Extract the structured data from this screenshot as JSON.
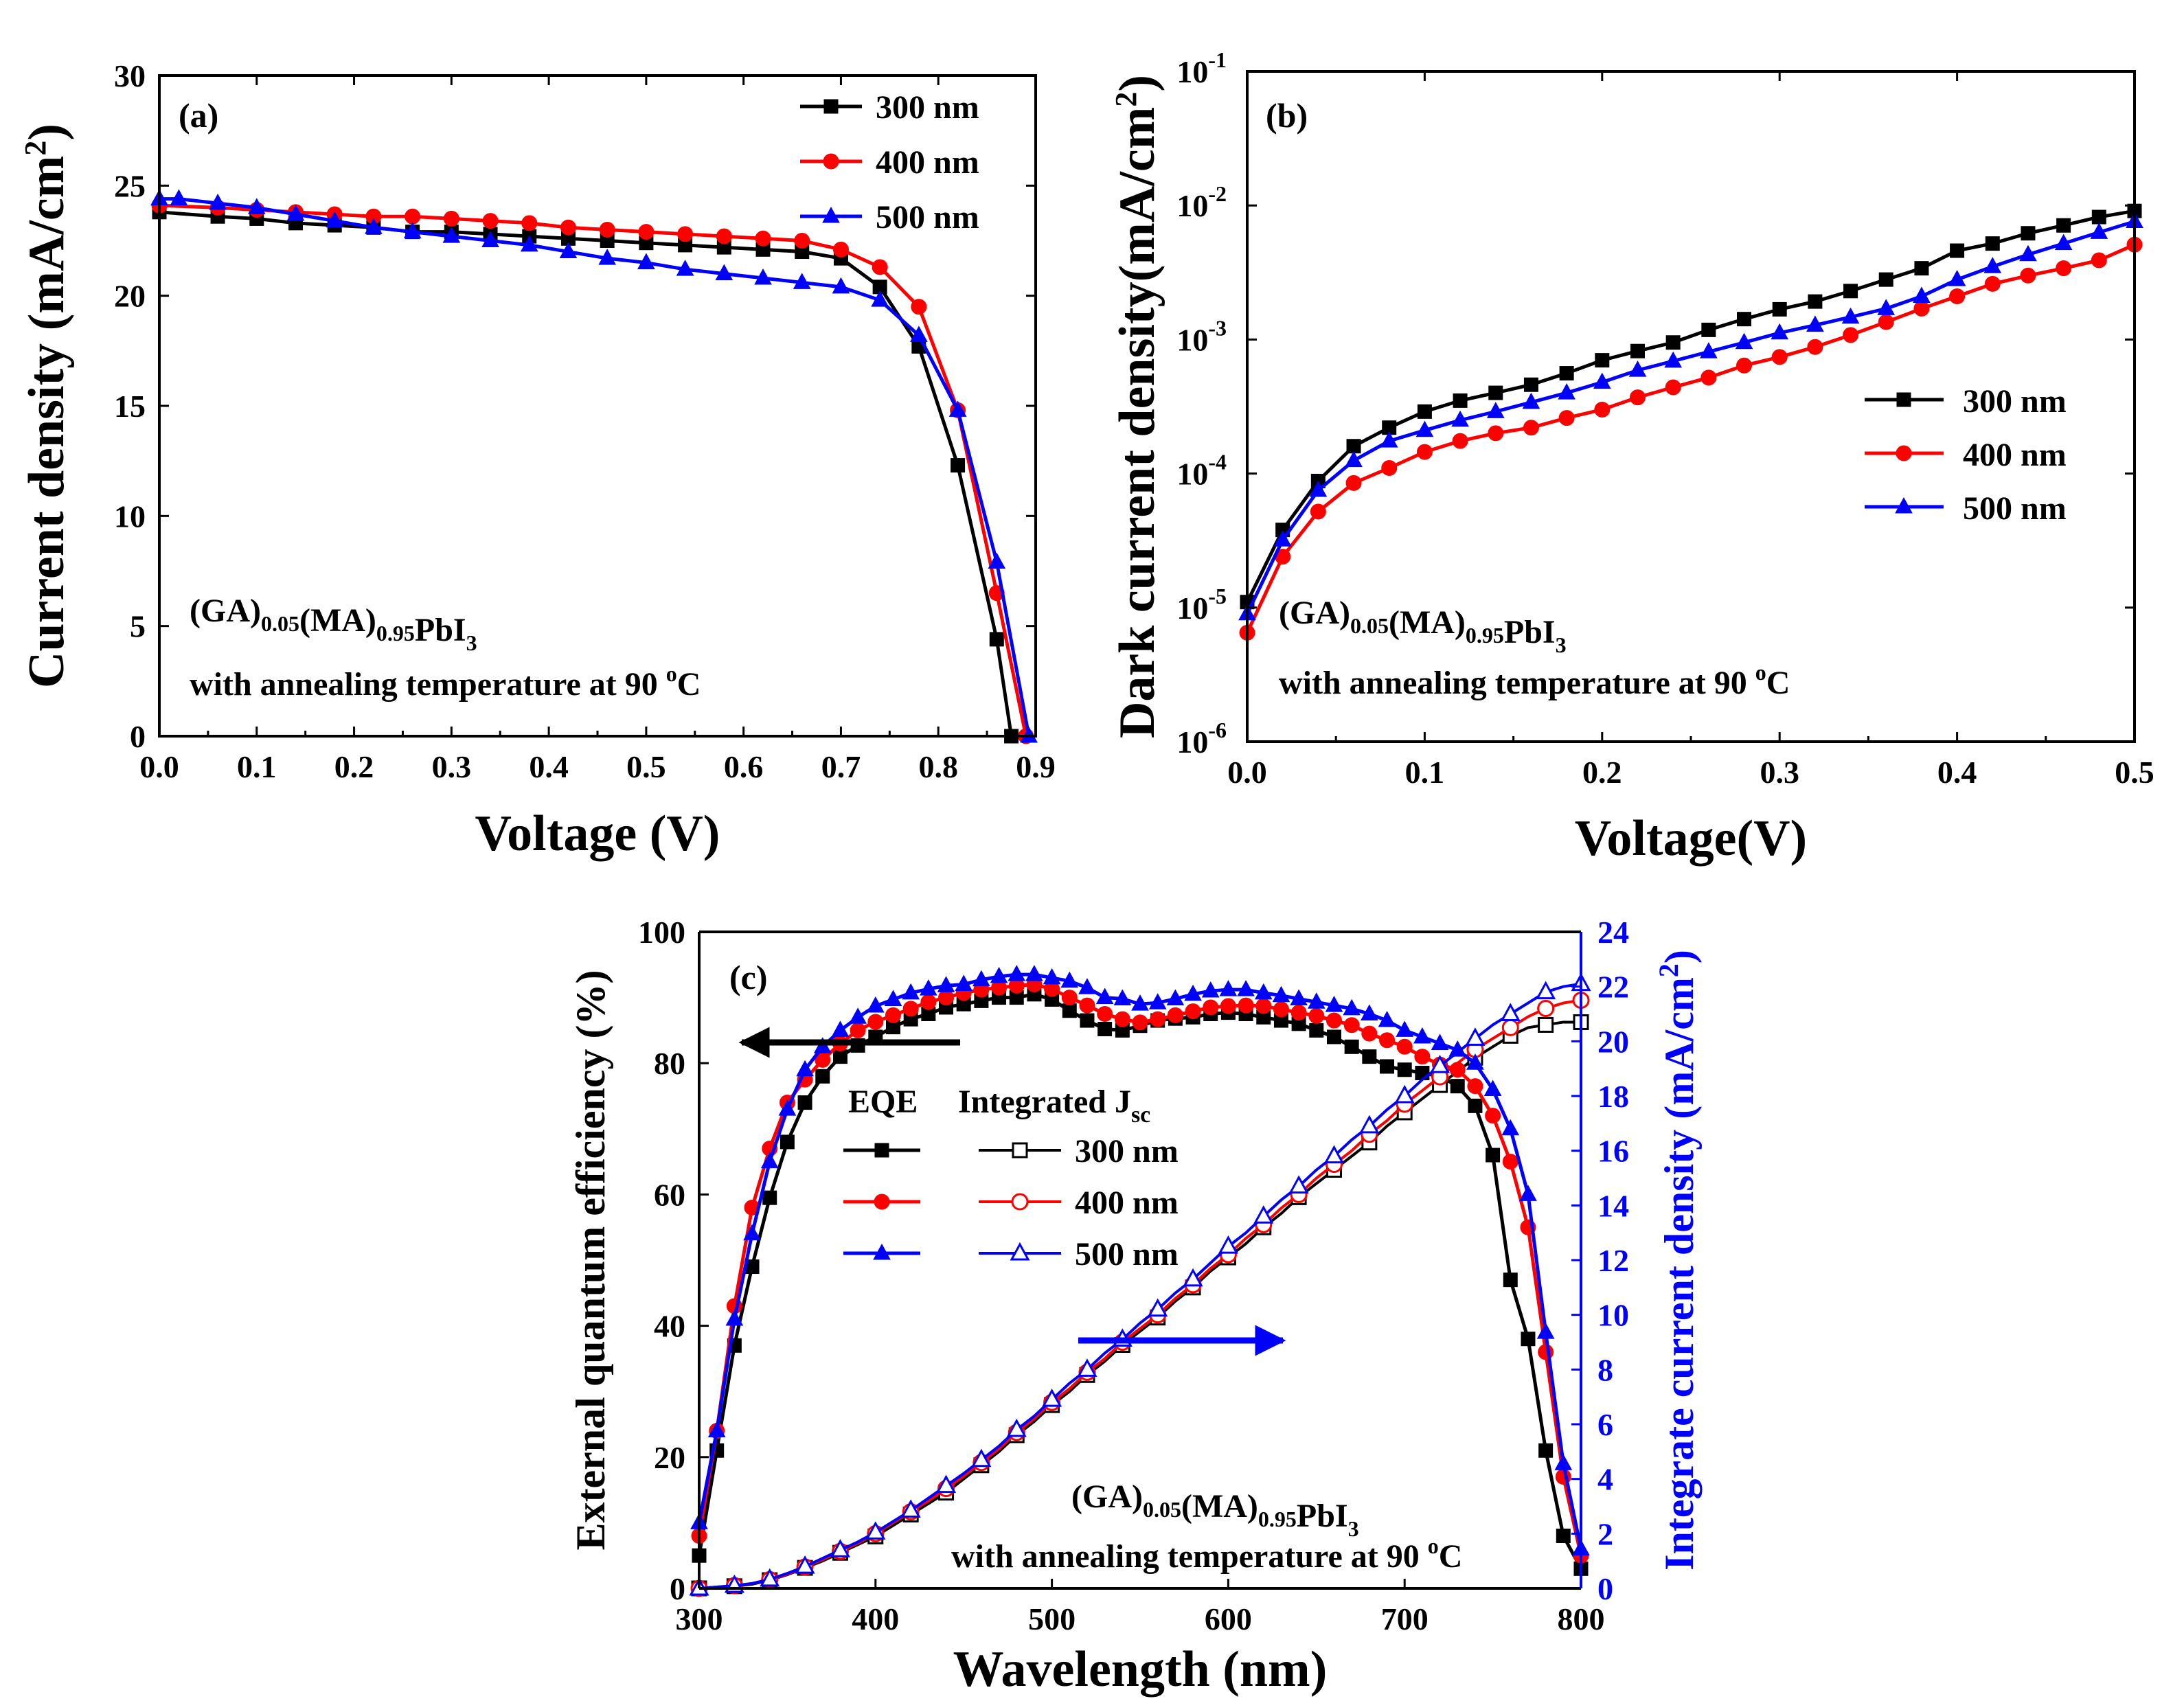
{
  "chart_data": [
    {
      "panel": "a",
      "type": "line",
      "title": "(a)",
      "xlabel": "Voltage (V)",
      "ylabel": "Current density (mA/cm2)",
      "ylabel_parts": {
        "base": "Current density (mA/cm",
        "sup": "2",
        "close": ")"
      },
      "xlim": [
        0.0,
        0.9
      ],
      "ylim": [
        0,
        30
      ],
      "x_ticks": [
        0.0,
        0.1,
        0.2,
        0.3,
        0.4,
        0.5,
        0.6,
        0.7,
        0.8,
        0.9
      ],
      "x_tick_labels": [
        "0.0",
        "0.1",
        "0.2",
        "0.3",
        "0.4",
        "0.5",
        "0.6",
        "0.7",
        "0.8",
        "0.9"
      ],
      "y_ticks": [
        0,
        5,
        10,
        15,
        20,
        25,
        30
      ],
      "y_tick_labels": [
        "0",
        "5",
        "10",
        "15",
        "20",
        "25",
        "30"
      ],
      "legend_position": "top-right",
      "annotation": {
        "formula": "(GA)0.05(MA)0.95PbI3",
        "note": "with annealing temperature at 90 oC"
      },
      "series": [
        {
          "name": "300 nm",
          "color": "#000000",
          "marker": "square",
          "x": [
            0.0,
            0.06,
            0.1,
            0.14,
            0.18,
            0.22,
            0.26,
            0.3,
            0.34,
            0.38,
            0.42,
            0.46,
            0.5,
            0.54,
            0.58,
            0.62,
            0.66,
            0.7,
            0.74,
            0.78,
            0.82,
            0.86,
            0.875
          ],
          "y": [
            23.8,
            23.6,
            23.5,
            23.3,
            23.2,
            23.1,
            22.9,
            22.9,
            22.8,
            22.7,
            22.6,
            22.5,
            22.4,
            22.3,
            22.2,
            22.1,
            22.0,
            21.7,
            20.4,
            17.7,
            12.3,
            4.4,
            0.0
          ]
        },
        {
          "name": "400 nm",
          "color": "#ff0000",
          "marker": "circle",
          "x": [
            0.0,
            0.06,
            0.1,
            0.14,
            0.18,
            0.22,
            0.26,
            0.3,
            0.34,
            0.38,
            0.42,
            0.46,
            0.5,
            0.54,
            0.58,
            0.62,
            0.66,
            0.7,
            0.74,
            0.78,
            0.82,
            0.86,
            0.89
          ],
          "y": [
            24.1,
            24.0,
            23.9,
            23.8,
            23.7,
            23.6,
            23.6,
            23.5,
            23.4,
            23.3,
            23.1,
            23.0,
            22.9,
            22.8,
            22.7,
            22.6,
            22.5,
            22.1,
            21.3,
            19.5,
            14.8,
            6.5,
            0.0
          ]
        },
        {
          "name": "500 nm",
          "color": "#0000ff",
          "marker": "triangle",
          "x": [
            0.0,
            0.02,
            0.06,
            0.1,
            0.14,
            0.18,
            0.22,
            0.26,
            0.3,
            0.34,
            0.38,
            0.42,
            0.46,
            0.5,
            0.54,
            0.58,
            0.62,
            0.66,
            0.7,
            0.74,
            0.78,
            0.82,
            0.86,
            0.893
          ],
          "y": [
            24.4,
            24.4,
            24.2,
            24.0,
            23.7,
            23.4,
            23.1,
            22.9,
            22.7,
            22.5,
            22.3,
            22.0,
            21.7,
            21.5,
            21.2,
            21.0,
            20.8,
            20.6,
            20.4,
            19.8,
            18.2,
            14.8,
            7.9,
            0.0
          ]
        }
      ]
    },
    {
      "panel": "b",
      "type": "line",
      "title": "(b)",
      "xlabel": "Voltage(V)",
      "ylabel": "Dark current density(mA/cm2)",
      "ylabel_parts": {
        "base": "Dark current density(mA/cm",
        "sup": "2",
        "close": ")"
      },
      "yscale": "log",
      "xlim": [
        0.0,
        0.5
      ],
      "ylim": [
        1e-06,
        0.1
      ],
      "x_ticks": [
        0.0,
        0.1,
        0.2,
        0.3,
        0.4,
        0.5
      ],
      "x_tick_labels": [
        "0.0",
        "0.1",
        "0.2",
        "0.3",
        "0.4",
        "0.5"
      ],
      "y_tick_exponents": [
        "-6",
        "-5",
        "-4",
        "-3",
        "-2",
        "-1"
      ],
      "y_tick_base": "10",
      "legend_position": "middle-right",
      "annotation": {
        "formula": "(GA)0.05(MA)0.95PbI3",
        "note": "with annealing temperature at 90 oC"
      },
      "series": [
        {
          "name": "300 nm",
          "color": "#000000",
          "marker": "square",
          "x": [
            0.0,
            0.02,
            0.04,
            0.06,
            0.08,
            0.1,
            0.12,
            0.14,
            0.16,
            0.18,
            0.2,
            0.22,
            0.24,
            0.26,
            0.28,
            0.3,
            0.32,
            0.34,
            0.36,
            0.38,
            0.4,
            0.42,
            0.44,
            0.46,
            0.48,
            0.5
          ],
          "y": [
            1.1e-05,
            3.8e-05,
            8.8e-05,
            0.00016,
            0.00022,
            0.00029,
            0.00035,
            0.0004,
            0.00046,
            0.00056,
            0.0007,
            0.00082,
            0.00095,
            0.00118,
            0.00142,
            0.00168,
            0.00192,
            0.0023,
            0.0028,
            0.0034,
            0.0046,
            0.0052,
            0.0062,
            0.0071,
            0.0082,
            0.0091
          ]
        },
        {
          "name": "400 nm",
          "color": "#ff0000",
          "marker": "circle",
          "x": [
            0.0,
            0.02,
            0.04,
            0.06,
            0.08,
            0.1,
            0.12,
            0.14,
            0.16,
            0.18,
            0.2,
            0.22,
            0.24,
            0.26,
            0.28,
            0.3,
            0.32,
            0.34,
            0.36,
            0.38,
            0.4,
            0.42,
            0.44,
            0.46,
            0.48,
            0.5
          ],
          "y": [
            6.5e-06,
            2.4e-05,
            5.2e-05,
            8.5e-05,
            0.00011,
            0.000145,
            0.000175,
            0.0002,
            0.00022,
            0.00026,
            0.0003,
            0.00037,
            0.00044,
            0.00052,
            0.00064,
            0.00074,
            0.00088,
            0.00108,
            0.00135,
            0.0017,
            0.0021,
            0.0026,
            0.003,
            0.0034,
            0.0039,
            0.0051
          ]
        },
        {
          "name": "500 nm",
          "color": "#0000ff",
          "marker": "triangle",
          "x": [
            0.0,
            0.02,
            0.04,
            0.06,
            0.08,
            0.1,
            0.12,
            0.14,
            0.16,
            0.18,
            0.2,
            0.22,
            0.24,
            0.26,
            0.28,
            0.3,
            0.32,
            0.34,
            0.36,
            0.38,
            0.4,
            0.42,
            0.44,
            0.46,
            0.48,
            0.5
          ],
          "y": [
            9e-06,
            3.2e-05,
            7.5e-05,
            0.000125,
            0.000175,
            0.00021,
            0.00025,
            0.00029,
            0.00034,
            0.0004,
            0.00048,
            0.00059,
            0.00069,
            0.00081,
            0.00095,
            0.00112,
            0.00128,
            0.00147,
            0.0017,
            0.0021,
            0.0028,
            0.0035,
            0.0043,
            0.0052,
            0.0063,
            0.0076
          ]
        }
      ]
    },
    {
      "panel": "c",
      "type": "line",
      "title": "(c)",
      "xlabel": "Wavelength (nm)",
      "ylabel": "External quantum efficiency (%)",
      "ylabel_right": "Integrate current density (mA/cm2)",
      "ylabel_right_parts": {
        "base": "Integrate current density (mA/cm",
        "sup": "2",
        "close": ")"
      },
      "xlim": [
        300,
        800
      ],
      "ylim": [
        0,
        100
      ],
      "ylim_right": [
        0,
        24
      ],
      "x_ticks": [
        300,
        400,
        500,
        600,
        700,
        800
      ],
      "x_tick_labels": [
        "300",
        "400",
        "500",
        "600",
        "700",
        "800"
      ],
      "y_ticks": [
        0,
        20,
        40,
        60,
        80,
        100
      ],
      "y_tick_labels": [
        "0",
        "20",
        "40",
        "60",
        "80",
        "100"
      ],
      "y_ticks_right": [
        0,
        2,
        4,
        6,
        8,
        10,
        12,
        14,
        16,
        18,
        20,
        22,
        24
      ],
      "y_tick_labels_right": [
        "0",
        "2",
        "4",
        "6",
        "8",
        "10",
        "12",
        "14",
        "16",
        "18",
        "20",
        "22",
        "24"
      ],
      "legend_position": "top-left",
      "legend_header": {
        "eqe": "EQE",
        "jsc": "Integrated J",
        "jsc_sub": "sc"
      },
      "annotation": {
        "formula": "(GA)0.05(MA)0.95PbI3",
        "note": "with annealing temperature at 90 oC"
      },
      "x": [
        300,
        310,
        320,
        330,
        340,
        350,
        360,
        370,
        380,
        390,
        400,
        410,
        420,
        430,
        440,
        450,
        460,
        470,
        480,
        490,
        500,
        510,
        520,
        530,
        540,
        550,
        560,
        570,
        580,
        590,
        600,
        610,
        620,
        630,
        640,
        650,
        660,
        670,
        680,
        690,
        700,
        710,
        720,
        730,
        740,
        750,
        760,
        770,
        780,
        790,
        800
      ],
      "series": [
        {
          "name": "300 nm",
          "color": "#000000",
          "marker": "square",
          "eqe": [
            5,
            21,
            37,
            49,
            59.5,
            68,
            74,
            78,
            81,
            82.7,
            84,
            85.5,
            86.7,
            87.5,
            88.5,
            89,
            89.5,
            90,
            90,
            90.5,
            89.7,
            88,
            86.5,
            85.2,
            85,
            85.7,
            86.5,
            86.8,
            87,
            87.5,
            87.7,
            87.5,
            87,
            86.5,
            86,
            85,
            84,
            82.5,
            81,
            79.5,
            79,
            78.5,
            78,
            76.5,
            73.5,
            66,
            47,
            38,
            21,
            8,
            3
          ],
          "jsc": [
            0,
            0.05,
            0.08,
            0.15,
            0.3,
            0.5,
            0.75,
            1.0,
            1.3,
            1.6,
            1.9,
            2.3,
            2.7,
            3.1,
            3.5,
            4.0,
            4.5,
            5.0,
            5.6,
            6.1,
            6.7,
            7.2,
            7.8,
            8.3,
            8.9,
            9.4,
            9.9,
            10.5,
            11.0,
            11.6,
            12.1,
            12.6,
            13.2,
            13.7,
            14.3,
            14.8,
            15.3,
            15.8,
            16.3,
            16.9,
            17.4,
            17.9,
            18.4,
            18.9,
            19.4,
            19.8,
            20.2,
            20.5,
            20.6,
            20.7,
            20.7
          ]
        },
        {
          "name": "400 nm",
          "color": "#ff0000",
          "marker": "circle",
          "eqe": [
            8,
            24,
            43,
            58,
            67,
            74,
            77.5,
            80.5,
            83,
            85,
            86.3,
            87.3,
            88.3,
            89.3,
            90,
            90.7,
            91.2,
            91.5,
            91.8,
            92,
            91.3,
            90,
            88.8,
            87.5,
            86.7,
            86.2,
            86.7,
            87.3,
            87.9,
            88.5,
            88.7,
            88.8,
            88.7,
            88.2,
            87.7,
            87.2,
            86.5,
            85.8,
            84.5,
            83.5,
            82.5,
            81,
            79.8,
            79,
            76.5,
            72,
            65,
            55,
            36,
            17,
            5
          ],
          "jsc": [
            0,
            0.05,
            0.1,
            0.18,
            0.32,
            0.52,
            0.78,
            1.05,
            1.35,
            1.65,
            2.0,
            2.4,
            2.8,
            3.2,
            3.65,
            4.1,
            4.6,
            5.1,
            5.7,
            6.2,
            6.8,
            7.3,
            7.9,
            8.4,
            9.0,
            9.5,
            10.0,
            10.6,
            11.1,
            11.7,
            12.2,
            12.8,
            13.3,
            13.9,
            14.4,
            15.0,
            15.5,
            16.0,
            16.6,
            17.1,
            17.7,
            18.2,
            18.7,
            19.2,
            19.7,
            20.1,
            20.5,
            20.9,
            21.2,
            21.4,
            21.5
          ]
        },
        {
          "name": "500 nm",
          "color": "#0000ff",
          "marker": "triangle",
          "eqe": [
            10,
            24,
            41,
            54,
            65,
            73,
            79,
            82.5,
            85,
            87,
            88.7,
            89.7,
            90.7,
            91.3,
            91.8,
            92,
            92.7,
            93.2,
            93.5,
            93.5,
            93,
            92.5,
            91.5,
            90,
            89.8,
            89,
            89.2,
            89.8,
            90.5,
            91,
            91.2,
            91.2,
            90.7,
            90.3,
            89.8,
            89.3,
            88.8,
            88.3,
            87.5,
            86.5,
            85,
            84,
            83,
            82,
            80,
            76,
            70,
            60,
            39,
            19,
            6
          ],
          "jsc": [
            0,
            0.05,
            0.1,
            0.18,
            0.33,
            0.55,
            0.8,
            1.1,
            1.4,
            1.7,
            2.05,
            2.45,
            2.85,
            3.3,
            3.75,
            4.2,
            4.7,
            5.2,
            5.8,
            6.3,
            6.9,
            7.5,
            8.0,
            8.6,
            9.1,
            9.7,
            10.2,
            10.8,
            11.3,
            11.9,
            12.5,
            13.0,
            13.6,
            14.2,
            14.7,
            15.3,
            15.8,
            16.4,
            16.9,
            17.5,
            18.0,
            18.6,
            19.1,
            19.6,
            20.1,
            20.6,
            21.0,
            21.4,
            21.8,
            22.0,
            22.1
          ]
        }
      ]
    }
  ]
}
